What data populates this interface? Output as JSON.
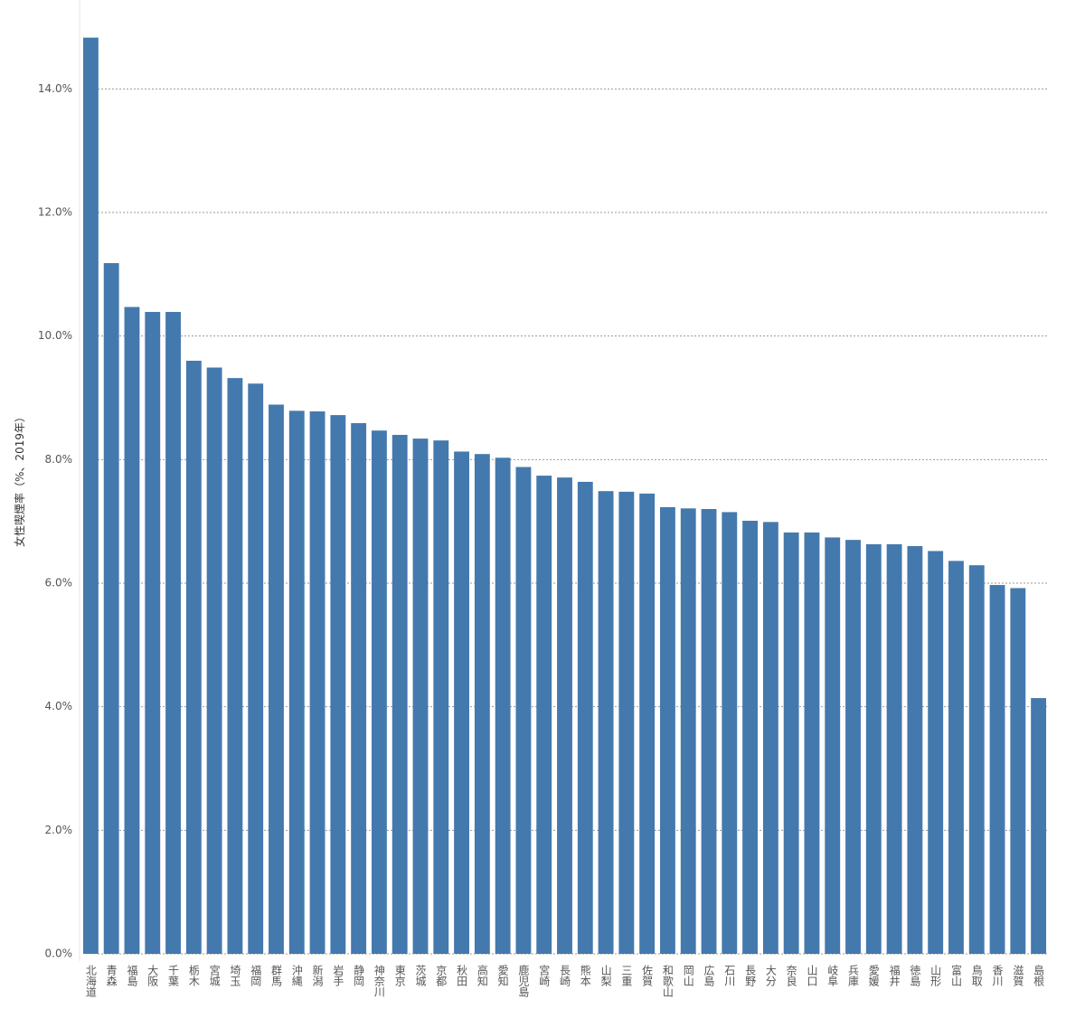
{
  "chart_data": {
    "type": "bar",
    "y_label": "女性喫煙率（%、2019年）",
    "categories": [
      "北海道",
      "青森",
      "福島",
      "大阪",
      "千葉",
      "栃木",
      "宮城",
      "埼玉",
      "福岡",
      "群馬",
      "沖縄",
      "新潟",
      "岩手",
      "静岡",
      "神奈川",
      "東京",
      "茨城",
      "京都",
      "秋田",
      "高知",
      "愛知",
      "鹿児島",
      "宮崎",
      "長崎",
      "熊本",
      "山梨",
      "三重",
      "佐賀",
      "和歌山",
      "岡山",
      "広島",
      "石川",
      "長野",
      "大分",
      "奈良",
      "山口",
      "岐阜",
      "兵庫",
      "愛媛",
      "福井",
      "徳島",
      "山形",
      "富山",
      "鳥取",
      "香川",
      "滋賀",
      "島根"
    ],
    "values": [
      14.83,
      11.18,
      10.47,
      10.39,
      10.39,
      9.6,
      9.49,
      9.32,
      9.23,
      8.89,
      8.79,
      8.78,
      8.72,
      8.59,
      8.47,
      8.4,
      8.34,
      8.31,
      8.13,
      8.09,
      8.03,
      7.88,
      7.74,
      7.71,
      7.64,
      7.49,
      7.48,
      7.45,
      7.23,
      7.21,
      7.2,
      7.15,
      7.01,
      6.99,
      6.82,
      6.82,
      6.74,
      6.7,
      6.63,
      6.63,
      6.6,
      6.52,
      6.36,
      6.29,
      5.97,
      5.92,
      4.14
    ],
    "color": "#4479ae",
    "ylim": [
      0,
      15
    ],
    "yticks": [
      {
        "value": 0,
        "label": "0.0%"
      },
      {
        "value": 2,
        "label": "2.0%"
      },
      {
        "value": 4,
        "label": "4.0%"
      },
      {
        "value": 6,
        "label": "6.0%"
      },
      {
        "value": 8,
        "label": "8.0%"
      },
      {
        "value": 10,
        "label": "10.0%"
      },
      {
        "value": 12,
        "label": "12.0%"
      },
      {
        "value": 14,
        "label": "14.0%"
      }
    ],
    "grid": true
  }
}
